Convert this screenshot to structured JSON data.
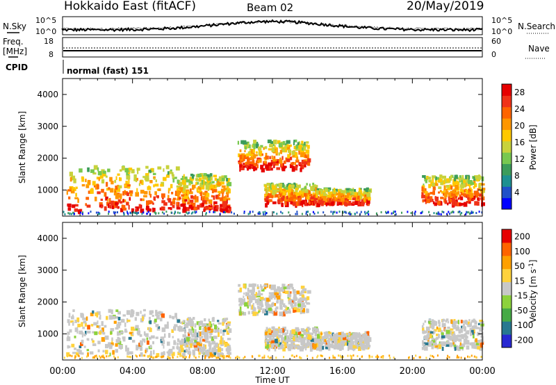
{
  "header": {
    "title": "Hokkaido East (fitACF)",
    "beam": "Beam 02",
    "date": "20/May/2019"
  },
  "top_panels": {
    "nsky_label": "N.Sky",
    "nsearch_label": "N.Search",
    "noise_ticks": [
      "10^5",
      "10^0"
    ],
    "freq_label": "Freq.",
    "freq_unit": "[MHz]",
    "freq_ticks": [
      "18",
      "8"
    ],
    "nave_label": "Nave",
    "nave_ticks": [
      "60",
      "0"
    ],
    "cpid_label": "CPID",
    "cpid_text": "normal (fast) 151"
  },
  "chart_data": [
    {
      "type": "heatmap",
      "title": "",
      "xlabel": "Time UT",
      "ylabel": "Slant Range [km]",
      "xlim": [
        "00:00",
        "24:00"
      ],
      "ylim": [
        180,
        4500
      ],
      "x_ticks": [
        "00:00",
        "04:00",
        "08:00",
        "12:00",
        "16:00",
        "20:00",
        "00:00"
      ],
      "y_ticks": [
        1000,
        2000,
        3000,
        4000
      ],
      "colorbar": {
        "label": "Power [dB]",
        "ticks": [
          4,
          8,
          12,
          16,
          20,
          24,
          28
        ],
        "colors": [
          "#0000ff",
          "#2050c8",
          "#1e9090",
          "#3c9c5a",
          "#78c850",
          "#c8d23c",
          "#ffc800",
          "#ff9600",
          "#ff6400",
          "#f03218",
          "#e60000"
        ]
      },
      "regions": [
        {
          "start_hour": 0.2,
          "end_hour": 6.5,
          "range_low_km": 300,
          "range_high_km": 1700,
          "level": "high"
        },
        {
          "start_hour": 6.5,
          "end_hour": 9.5,
          "range_low_km": 300,
          "range_high_km": 1450,
          "level": "high"
        },
        {
          "start_hour": 10.0,
          "end_hour": 14.0,
          "range_low_km": 1600,
          "range_high_km": 2500,
          "level": "high"
        },
        {
          "start_hour": 11.5,
          "end_hour": 14.5,
          "range_low_km": 500,
          "range_high_km": 1150,
          "level": "high"
        },
        {
          "start_hour": 14.5,
          "end_hour": 17.5,
          "range_low_km": 500,
          "range_high_km": 1000,
          "level": "medium"
        },
        {
          "start_hour": 20.5,
          "end_hour": 24.0,
          "range_low_km": 500,
          "range_high_km": 1400,
          "level": "high"
        }
      ]
    },
    {
      "type": "heatmap",
      "title": "",
      "xlabel": "Time UT",
      "ylabel": "Slant Range [km]",
      "xlim": [
        "00:00",
        "24:00"
      ],
      "ylim": [
        180,
        4500
      ],
      "x_ticks": [
        "00:00",
        "04:00",
        "08:00",
        "12:00",
        "16:00",
        "20:00",
        "00:00"
      ],
      "y_ticks": [
        1000,
        2000,
        3000,
        4000
      ],
      "colorbar": {
        "label": "Velocity [m s^-1]",
        "ticks": [
          200,
          100,
          50,
          15,
          -15,
          -50,
          -100,
          -200
        ],
        "colors": [
          "#2828d2",
          "#287890",
          "#46aa46",
          "#8cd23c",
          "#c8c8c8",
          "#ffd23c",
          "#ffa000",
          "#ff6400",
          "#e60000"
        ]
      },
      "regions": [
        {
          "start_hour": 0.2,
          "end_hour": 6.5,
          "range_low_km": 300,
          "range_high_km": 1700,
          "level": "low"
        },
        {
          "start_hour": 6.5,
          "end_hour": 9.5,
          "range_low_km": 300,
          "range_high_km": 1450,
          "level": "low"
        },
        {
          "start_hour": 10.0,
          "end_hour": 14.0,
          "range_low_km": 1600,
          "range_high_km": 2500,
          "level": "low"
        },
        {
          "start_hour": 11.5,
          "end_hour": 14.5,
          "range_low_km": 500,
          "range_high_km": 1150,
          "level": "low"
        },
        {
          "start_hour": 14.5,
          "end_hour": 17.5,
          "range_low_km": 500,
          "range_high_km": 1000,
          "level": "low"
        },
        {
          "start_hour": 20.5,
          "end_hour": 24.0,
          "range_low_km": 500,
          "range_high_km": 1400,
          "level": "low"
        }
      ]
    }
  ]
}
